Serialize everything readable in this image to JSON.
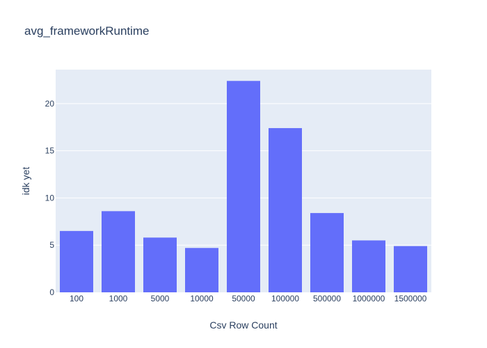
{
  "chart_data": {
    "type": "bar",
    "title": "avg_frameworkRuntime",
    "xlabel": "Csv Row Count",
    "ylabel": "idk yet",
    "categories": [
      "100",
      "1000",
      "5000",
      "10000",
      "50000",
      "100000",
      "500000",
      "1000000",
      "1500000"
    ],
    "values": [
      6.5,
      8.6,
      5.8,
      4.7,
      22.4,
      17.4,
      8.4,
      5.5,
      4.9
    ],
    "ylim": [
      0,
      23.6
    ],
    "yticks": [
      0,
      5,
      10,
      15,
      20
    ],
    "grid": true,
    "colors": {
      "bar": "#636efa",
      "plot_bg": "#e5ecf6",
      "grid": "#ffffff",
      "text": "#2a3f5f"
    }
  }
}
